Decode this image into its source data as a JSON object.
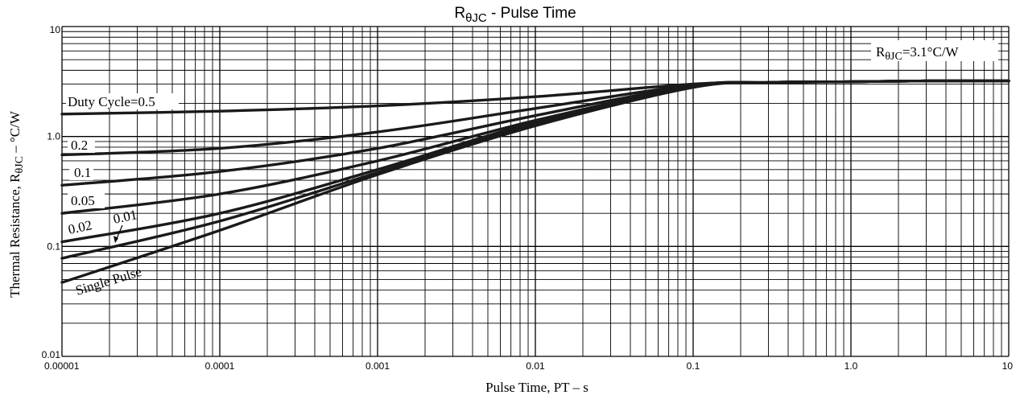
{
  "chart_data": {
    "type": "line",
    "title": {
      "main": "R",
      "sub": "θJC",
      "rest": " - Pulse Time"
    },
    "xlabel": "Pulse Time, PT  –  s",
    "ylabel": {
      "main": "Thermal Resistance, R",
      "sub": "θJC",
      "rest": "  –  °C/W"
    },
    "x_scale": "log",
    "y_scale": "log",
    "xlim": [
      1e-05,
      10
    ],
    "ylim": [
      0.01,
      10
    ],
    "x_tick_labels": [
      "0.00001",
      "0.0001",
      "0.001",
      "0.01",
      "0.1",
      "1.0",
      "10"
    ],
    "y_tick_labels": [
      "0.01",
      "0.1",
      "1.0",
      "10"
    ],
    "grid": true,
    "annotation": {
      "main": "R",
      "sub": "θJC",
      "rest": "=3.1°C/W"
    },
    "series": [
      {
        "name": "Duty Cycle=0.5",
        "x": [
          1e-05,
          0.0001,
          0.001,
          0.01,
          0.1,
          0.3,
          1,
          3,
          10
        ],
        "y": [
          1.6,
          1.7,
          1.9,
          2.3,
          3.0,
          3.1,
          3.15,
          3.2,
          3.2
        ]
      },
      {
        "name": "0.2",
        "x": [
          1e-05,
          0.0001,
          0.001,
          0.01,
          0.1,
          0.3,
          1,
          3,
          10
        ],
        "y": [
          0.68,
          0.78,
          1.1,
          1.8,
          2.95,
          3.1,
          3.15,
          3.2,
          3.2
        ]
      },
      {
        "name": "0.1",
        "x": [
          1e-05,
          0.0001,
          0.001,
          0.01,
          0.1,
          0.3,
          1,
          3,
          10
        ],
        "y": [
          0.36,
          0.48,
          0.78,
          1.55,
          2.9,
          3.1,
          3.15,
          3.2,
          3.2
        ]
      },
      {
        "name": "0.05",
        "x": [
          1e-05,
          0.0001,
          0.001,
          0.01,
          0.1,
          0.3,
          1,
          3,
          10
        ],
        "y": [
          0.2,
          0.3,
          0.6,
          1.4,
          2.85,
          3.1,
          3.15,
          3.2,
          3.2
        ]
      },
      {
        "name": "0.02",
        "x": [
          1e-05,
          0.0001,
          0.001,
          0.01,
          0.1,
          0.3,
          1,
          3,
          10
        ],
        "y": [
          0.11,
          0.2,
          0.5,
          1.35,
          2.85,
          3.1,
          3.15,
          3.2,
          3.2
        ]
      },
      {
        "name": "0.01",
        "x": [
          1e-05,
          0.0001,
          0.001,
          0.01,
          0.1,
          0.3,
          1,
          3,
          10
        ],
        "y": [
          0.078,
          0.17,
          0.47,
          1.3,
          2.8,
          3.1,
          3.15,
          3.2,
          3.2
        ]
      },
      {
        "name": "Single Pulse",
        "x": [
          1e-05,
          0.0001,
          0.001,
          0.01,
          0.1,
          0.3,
          1,
          3,
          10
        ],
        "y": [
          0.047,
          0.14,
          0.45,
          1.25,
          2.8,
          3.1,
          3.15,
          3.2,
          3.2
        ]
      }
    ]
  }
}
